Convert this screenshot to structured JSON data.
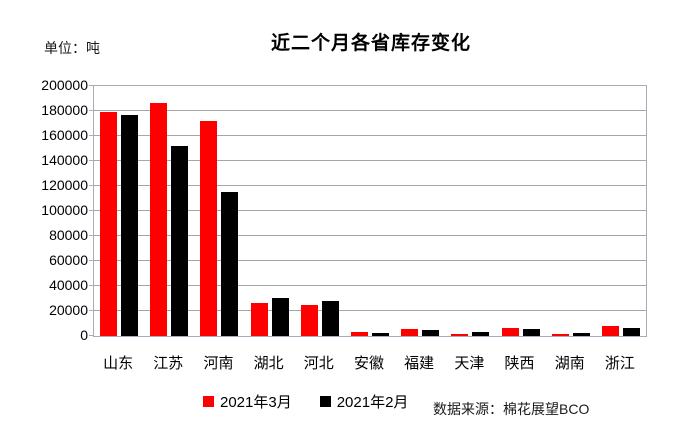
{
  "chart_data": {
    "type": "bar",
    "title": "近二个月各省库存变化",
    "unit_label": "单位：吨",
    "source": "数据来源：棉花展望BCO",
    "categories": [
      "山东",
      "江苏",
      "河南",
      "湖北",
      "河北",
      "安徽",
      "福建",
      "天津",
      "陕西",
      "湖南",
      "浙江"
    ],
    "series": [
      {
        "name": "2021年3月",
        "color": "#fe0000",
        "values": [
          179000,
          186000,
          172000,
          26000,
          25000,
          3000,
          5500,
          1500,
          6000,
          1500,
          8000
        ]
      },
      {
        "name": "2021年2月",
        "color": "#000000",
        "values": [
          177000,
          152000,
          115000,
          30000,
          28000,
          2000,
          5000,
          3000,
          5500,
          2000,
          6000
        ]
      }
    ],
    "ylabel": "",
    "xlabel": "",
    "ylim": [
      0,
      200000
    ],
    "ytick_step": 20000,
    "yticks": [
      0,
      20000,
      40000,
      60000,
      80000,
      100000,
      120000,
      140000,
      160000,
      180000,
      200000
    ],
    "grid": true,
    "legend_position": "bottom",
    "colors": {
      "grid": "#a6a6a6",
      "plot_border": "#a3aeb9",
      "background": "#ffffff"
    }
  }
}
